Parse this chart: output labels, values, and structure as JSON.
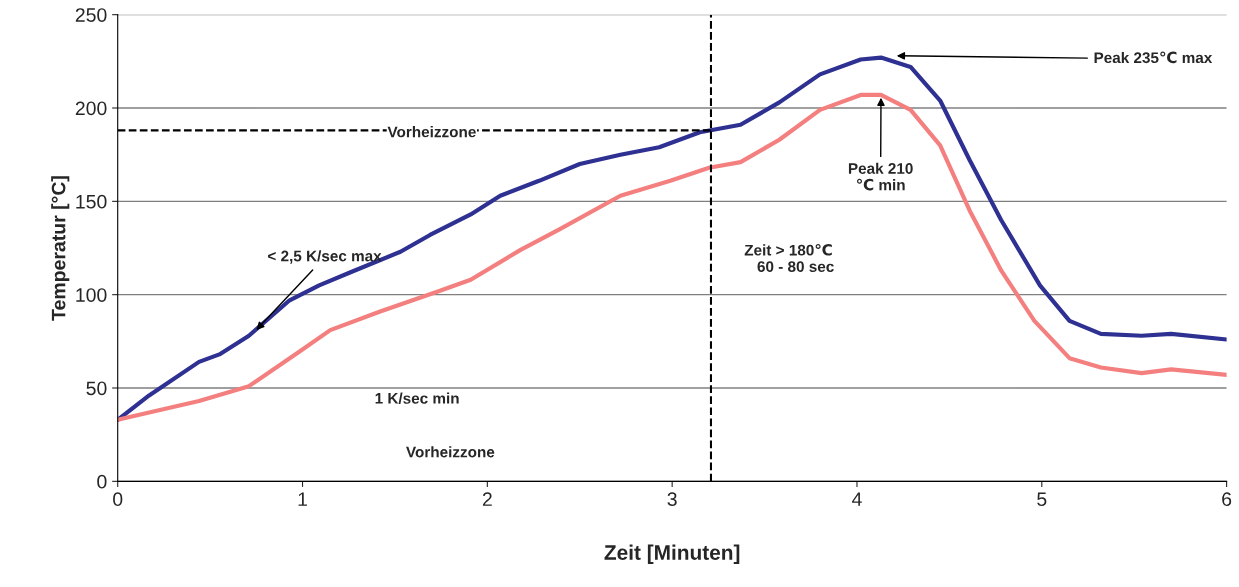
{
  "chart_data": {
    "type": "line",
    "xlabel": "Zeit [Minuten]",
    "ylabel": "Temperatur [°C]",
    "xlim": [
      0,
      6
    ],
    "xticks": [
      0,
      1,
      2,
      3,
      4,
      5,
      6
    ],
    "ylim": [
      0,
      250
    ],
    "yticks": [
      0,
      50,
      100,
      150,
      200,
      250
    ],
    "grid": "y",
    "legend": false,
    "series": [
      {
        "color": "#2e3192",
        "x": [
          0,
          0.17,
          0.44,
          0.55,
          0.71,
          0.93,
          1.09,
          1.26,
          1.53,
          1.69,
          1.91,
          2.07,
          2.28,
          2.5,
          2.72,
          2.93,
          3.15,
          3.37,
          3.58,
          3.8,
          4.02,
          4.13,
          4.29,
          4.45,
          4.61,
          4.78,
          4.99,
          5.15,
          5.32,
          5.54,
          5.7,
          6
        ],
        "values": [
          33,
          46,
          64,
          68,
          78,
          97,
          105,
          112,
          123,
          132,
          143,
          153,
          161,
          170,
          175,
          179,
          187,
          191,
          203,
          218,
          226,
          227,
          222,
          204,
          172,
          140,
          105,
          86,
          79,
          78,
          79,
          76
        ]
      },
      {
        "color": "#f47f7f",
        "x": [
          0,
          0.44,
          0.71,
          0.99,
          1.15,
          1.42,
          1.74,
          1.91,
          2.18,
          2.39,
          2.72,
          2.99,
          3.2,
          3.37,
          3.58,
          3.8,
          4.02,
          4.13,
          4.29,
          4.45,
          4.61,
          4.78,
          4.96,
          5.15,
          5.32,
          5.54,
          5.7,
          6
        ],
        "values": [
          33,
          43,
          51,
          70,
          81,
          91,
          102,
          108,
          124,
          135,
          153,
          161,
          168,
          171,
          183,
          199,
          207,
          207,
          199,
          180,
          145,
          113,
          86,
          66,
          61,
          58,
          60,
          57
        ]
      },
      {
        "color": "#000000",
        "line_style": "dashed",
        "x": [
          0,
          3.21
        ],
        "values": [
          188,
          188
        ]
      }
    ],
    "ref_lines": [
      {
        "axis": "x",
        "value": 3.21,
        "color": "#000000",
        "line_style": "dashed"
      }
    ],
    "annotations": [
      {
        "text": "Vorheizzone",
        "x": 1.7,
        "y": 188
      },
      "Vorheizzone",
      {
        "text": "< 2,5 K/sec max",
        "x": 0.74,
        "y": 80
      },
      "1 K/sec min",
      "Zeit > 180℃\n   60 - 80 sec",
      {
        "text": "Peak 235℃ max",
        "x": 4.2,
        "y": 228
      },
      {
        "text": "Peak 210\n℃ min",
        "x": 4.13,
        "y": 207
      }
    ]
  }
}
